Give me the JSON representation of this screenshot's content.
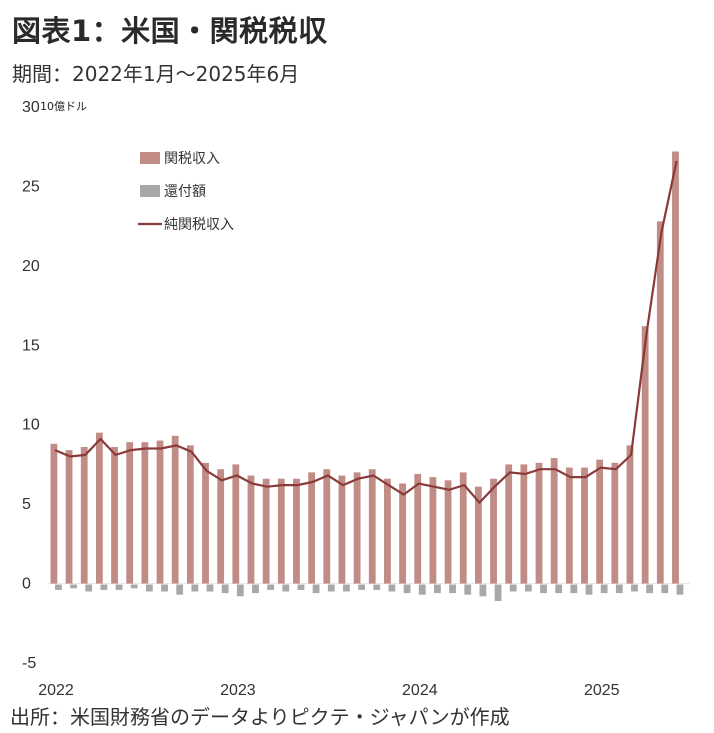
{
  "title": "図表1：米国・関税税収",
  "subtitle": "期間：2022年1月～2025年6月",
  "source": "出所：米国財務省のデータよりピクテ・ジャパンが作成",
  "colors": {
    "customs": "#c08c85",
    "refunds": "#a8a8a8",
    "net": "#8b3a3a"
  },
  "chart_data": {
    "type": "bar",
    "unit_label": "10億ドル",
    "ylim": [
      -5,
      30
    ],
    "yticks": [
      "30",
      "25",
      "20",
      "15",
      "10",
      "5",
      "0",
      "-5"
    ],
    "x_ticks": [
      "2022",
      "2023",
      "2024",
      "2025"
    ],
    "legend_position": "top-left",
    "series": [
      {
        "name": "関税収入",
        "type": "bar",
        "values": [
          8.8,
          8.4,
          8.6,
          9.5,
          8.6,
          8.9,
          8.9,
          9.0,
          9.3,
          8.7,
          7.6,
          7.2,
          7.5,
          6.8,
          6.6,
          6.6,
          6.6,
          7.0,
          7.2,
          6.8,
          7.0,
          7.2,
          6.6,
          6.3,
          6.9,
          6.7,
          6.5,
          7.0,
          6.1,
          6.6,
          7.5,
          7.5,
          7.6,
          7.9,
          7.3,
          7.3,
          7.8,
          7.6,
          8.7,
          16.2,
          22.8,
          27.2
        ]
      },
      {
        "name": "還付額",
        "type": "bar",
        "values": [
          -0.4,
          -0.3,
          -0.5,
          -0.4,
          -0.4,
          -0.3,
          -0.5,
          -0.5,
          -0.7,
          -0.5,
          -0.5,
          -0.6,
          -0.8,
          -0.6,
          -0.4,
          -0.5,
          -0.4,
          -0.6,
          -0.5,
          -0.5,
          -0.4,
          -0.4,
          -0.5,
          -0.6,
          -0.7,
          -0.6,
          -0.6,
          -0.7,
          -0.8,
          -1.1,
          -0.5,
          -0.5,
          -0.6,
          -0.6,
          -0.6,
          -0.7,
          -0.6,
          -0.6,
          -0.5,
          -0.6,
          -0.6,
          -0.7
        ]
      },
      {
        "name": "純関税収入",
        "type": "line",
        "values": [
          8.4,
          8.0,
          8.1,
          9.1,
          8.1,
          8.4,
          8.5,
          8.5,
          8.7,
          8.3,
          7.1,
          6.5,
          6.8,
          6.3,
          6.1,
          6.2,
          6.2,
          6.4,
          6.8,
          6.2,
          6.6,
          6.8,
          6.2,
          5.6,
          6.3,
          6.1,
          5.9,
          6.2,
          5.1,
          6.1,
          7.0,
          6.9,
          7.2,
          7.2,
          6.7,
          6.7,
          7.3,
          7.2,
          8.1,
          15.6,
          22.1,
          26.6
        ]
      }
    ]
  }
}
